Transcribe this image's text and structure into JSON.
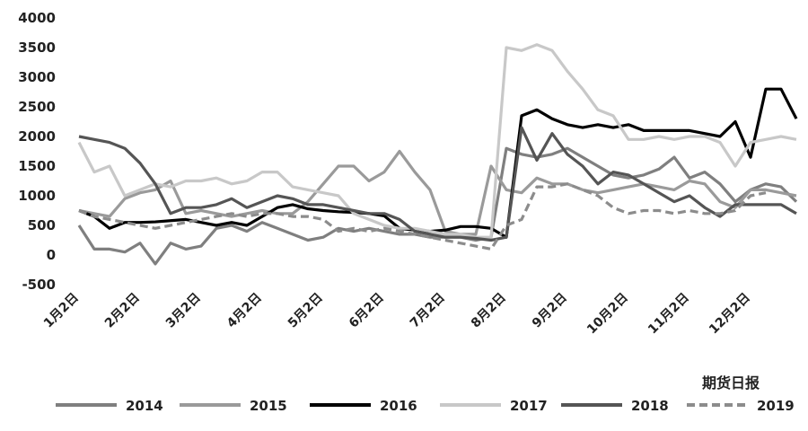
{
  "chart_data": {
    "type": "line",
    "categories": [
      "1月2日",
      null,
      null,
      null,
      "2月2日",
      null,
      null,
      null,
      "3月2日",
      null,
      null,
      null,
      "4月2日",
      null,
      null,
      null,
      "5月2日",
      null,
      null,
      null,
      "6月2日",
      null,
      null,
      null,
      "7月2日",
      null,
      null,
      null,
      "8月2日",
      null,
      null,
      null,
      "9月2日",
      null,
      null,
      null,
      "10月2日",
      null,
      null,
      null,
      "11月2日",
      null,
      null,
      null,
      "12月2日",
      null,
      null,
      null
    ],
    "ylim": [
      -500,
      4000
    ],
    "yticks": [
      -500,
      0,
      500,
      1000,
      1500,
      2000,
      2500,
      3000,
      3500,
      4000
    ],
    "series": [
      {
        "name": "2014",
        "color": "#7f7f7f",
        "dashed": false,
        "values": [
          500,
          100,
          100,
          50,
          200,
          -150,
          200,
          100,
          150,
          450,
          500,
          400,
          550,
          450,
          350,
          250,
          300,
          450,
          400,
          450,
          400,
          350,
          350,
          300,
          300,
          300,
          250,
          300,
          1800,
          1700,
          1650,
          1700,
          1800,
          1650,
          1500,
          1350,
          1300,
          1350,
          1450,
          1650,
          1300,
          1400,
          1200,
          900,
          1100,
          1200,
          1150,
          900
        ]
      },
      {
        "name": "2015",
        "color": "#9a9a9a",
        "dashed": false,
        "values": [
          750,
          700,
          650,
          950,
          1050,
          1100,
          1250,
          700,
          750,
          700,
          650,
          700,
          750,
          700,
          700,
          900,
          1200,
          1500,
          1500,
          1250,
          1400,
          1750,
          1400,
          1100,
          400,
          350,
          350,
          1500,
          1100,
          1050,
          1300,
          1200,
          1200,
          1100,
          1050,
          1100,
          1150,
          1200,
          1150,
          1100,
          1250,
          1200,
          900,
          800,
          1100,
          1100,
          1050,
          1000
        ]
      },
      {
        "name": "2016",
        "color": "#000000",
        "dashed": false,
        "values": [
          750,
          650,
          450,
          550,
          550,
          560,
          580,
          600,
          550,
          500,
          550,
          500,
          650,
          800,
          850,
          780,
          750,
          730,
          720,
          700,
          660,
          450,
          420,
          400,
          420,
          480,
          480,
          450,
          300,
          2350,
          2450,
          2300,
          2200,
          2150,
          2200,
          2150,
          2200,
          2100,
          2100,
          2100,
          2100,
          2050,
          2000,
          2250,
          1650,
          2800,
          2800,
          2300
        ]
      },
      {
        "name": "2017",
        "color": "#c8c8c8",
        "dashed": false,
        "values": [
          1900,
          1400,
          1500,
          1000,
          1100,
          1200,
          1150,
          1250,
          1250,
          1300,
          1200,
          1250,
          1400,
          1400,
          1150,
          1100,
          1050,
          1000,
          700,
          600,
          500,
          450,
          450,
          400,
          350,
          350,
          300,
          300,
          3500,
          3450,
          3550,
          3450,
          3100,
          2800,
          2450,
          2350,
          1950,
          1950,
          2000,
          1950,
          2000,
          2000,
          1900,
          1500,
          1900,
          1950,
          2000,
          1950
        ]
      },
      {
        "name": "2018",
        "color": "#555555",
        "dashed": false,
        "values": [
          2000,
          1950,
          1900,
          1800,
          1550,
          1200,
          700,
          800,
          800,
          850,
          950,
          800,
          900,
          1000,
          950,
          850,
          850,
          800,
          750,
          700,
          700,
          600,
          400,
          350,
          300,
          300,
          280,
          250,
          300,
          2150,
          1600,
          2050,
          1700,
          1500,
          1200,
          1400,
          1350,
          1200,
          1050,
          900,
          1000,
          800,
          650,
          850,
          850,
          850,
          850,
          700
        ]
      },
      {
        "name": "2019",
        "color": "#8c8c8c",
        "dashed": true,
        "values": [
          750,
          650,
          600,
          550,
          500,
          450,
          500,
          550,
          600,
          650,
          700,
          650,
          700,
          700,
          650,
          650,
          600,
          400,
          450,
          400,
          450,
          400,
          350,
          300,
          250,
          200,
          150,
          100,
          500,
          600,
          1150,
          1150,
          1200,
          1100,
          1000,
          800,
          700,
          750,
          750,
          700,
          750,
          700,
          700,
          750,
          1000,
          1050,
          null,
          null
        ]
      }
    ],
    "watermark": "期货日报"
  }
}
